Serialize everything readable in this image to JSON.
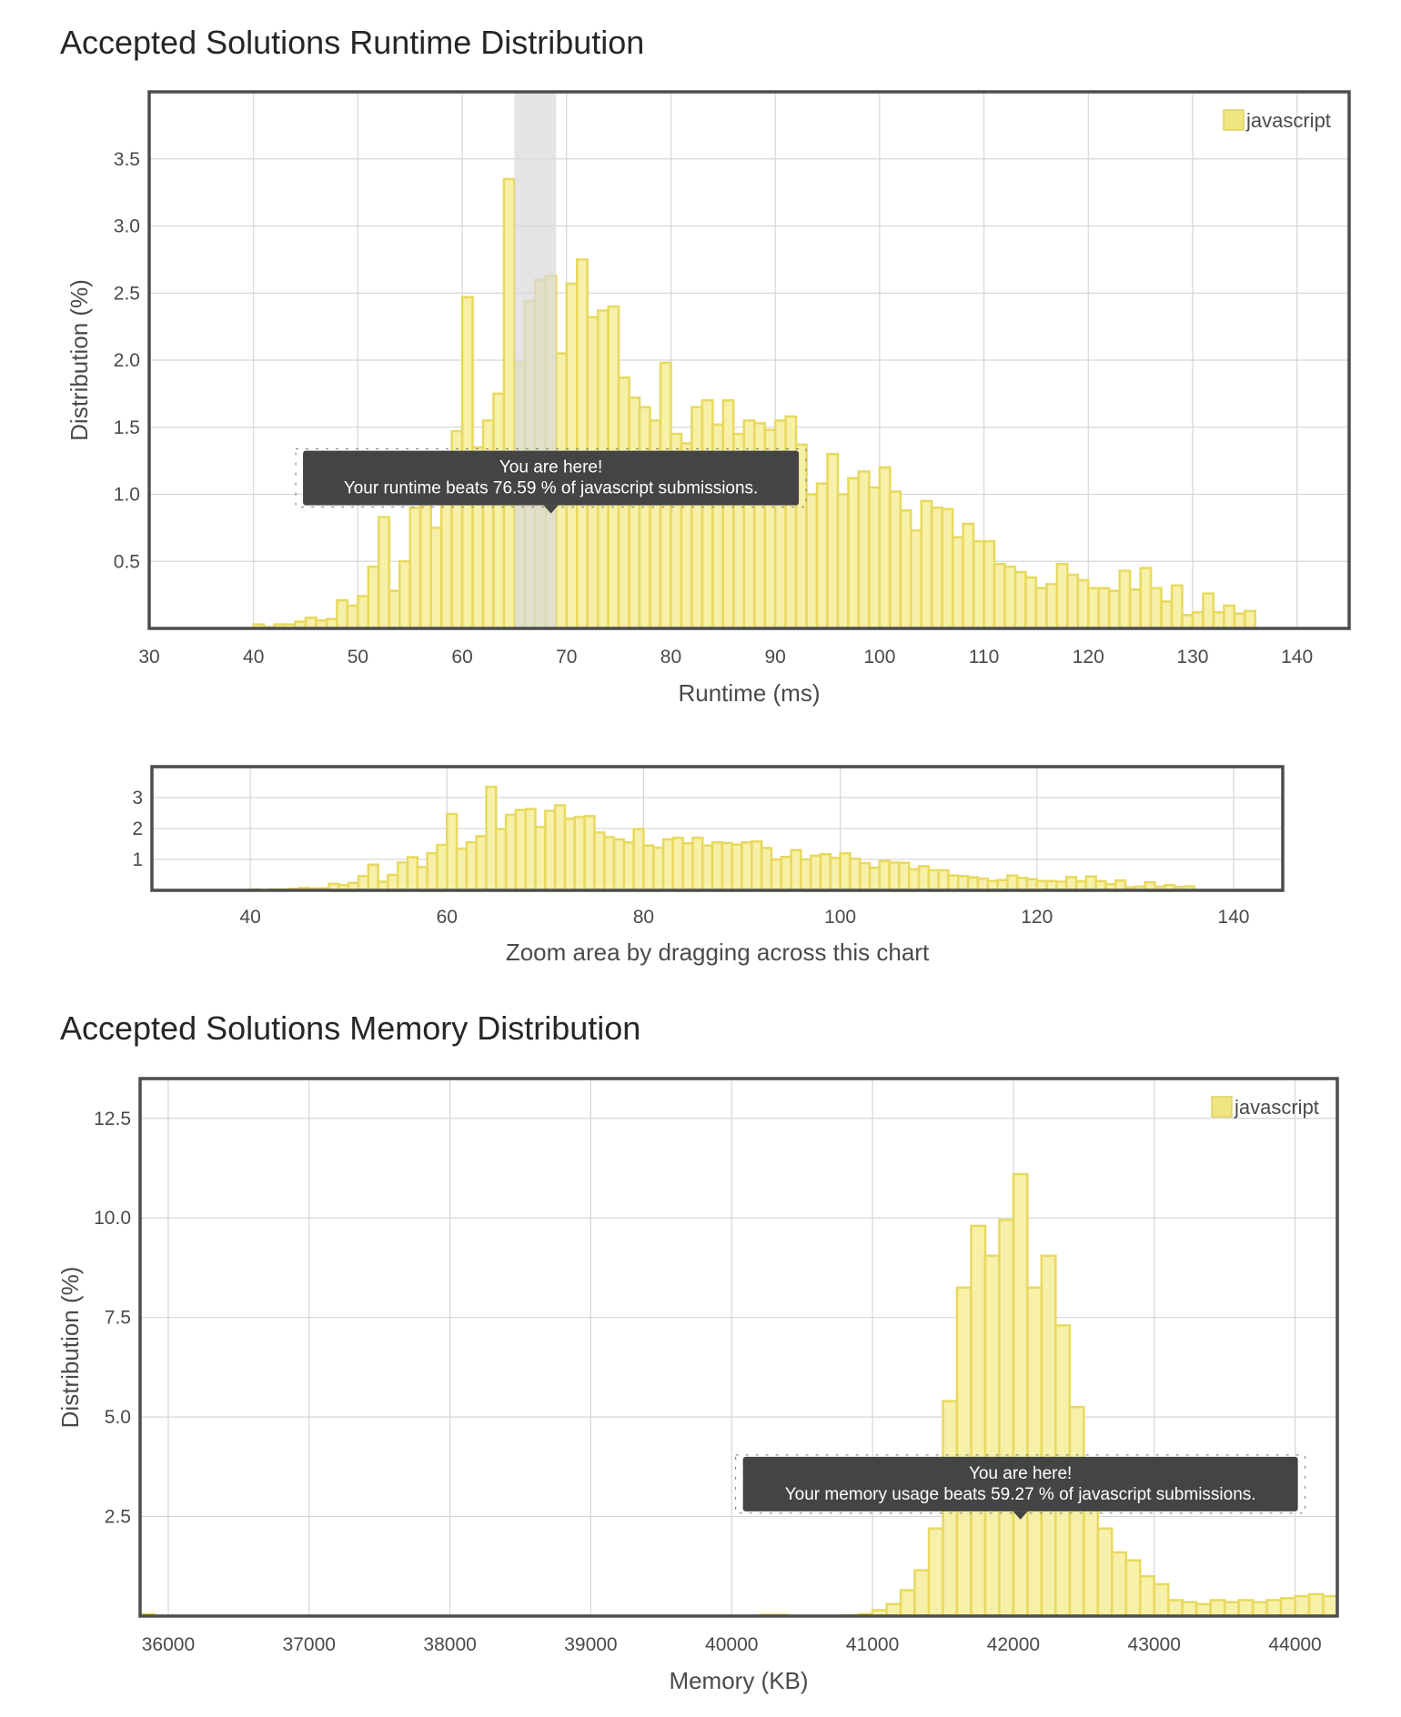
{
  "runtime_title": "Accepted Solutions Runtime Distribution",
  "memory_title": "Accepted Solutions Memory Distribution",
  "colors": {
    "bar_fill": "#f6f0a8",
    "bar_stroke": "#e8d95e",
    "tooltip_bg": "#444444",
    "frame": "#4d4d4d"
  },
  "chart_data": [
    {
      "id": "runtime",
      "type": "bar",
      "ylabel": "Distribution (%)",
      "xlabel": "Runtime (ms)",
      "legend": "javascript",
      "legend_position": "top-right",
      "grid": true,
      "xlim": [
        30,
        145
      ],
      "ylim": [
        0,
        4
      ],
      "bin_width": 1,
      "xticks": [
        30,
        40,
        50,
        60,
        70,
        80,
        90,
        100,
        110,
        120,
        130,
        140
      ],
      "yticks": [
        0.5,
        1.0,
        1.5,
        2.0,
        2.5,
        3.0,
        3.5
      ],
      "ytick_labels": [
        "0.5",
        "1.0",
        "1.5",
        "2.0",
        "2.5",
        "3.0",
        "3.5"
      ],
      "highlight_range": [
        65,
        69
      ],
      "tooltip": {
        "line1": "You are here!",
        "line2": "Your runtime beats 76.59 % of javascript submissions.",
        "x": 68.5,
        "y": 0.85
      },
      "x": [
        40,
        41,
        42,
        43,
        44,
        45,
        46,
        47,
        48,
        49,
        50,
        51,
        52,
        53,
        54,
        55,
        56,
        57,
        58,
        59,
        60,
        61,
        62,
        63,
        64,
        65,
        66,
        67,
        68,
        69,
        70,
        71,
        72,
        73,
        74,
        75,
        76,
        77,
        78,
        79,
        80,
        81,
        82,
        83,
        84,
        85,
        86,
        87,
        88,
        89,
        90,
        91,
        92,
        93,
        94,
        95,
        96,
        97,
        98,
        99,
        100,
        101,
        102,
        103,
        104,
        105,
        106,
        107,
        108,
        109,
        110,
        111,
        112,
        113,
        114,
        115,
        116,
        117,
        118,
        119,
        120,
        121,
        122,
        123,
        124,
        125,
        126,
        127,
        128,
        129,
        130,
        131,
        132,
        133,
        134,
        135
      ],
      "values": [
        0.03,
        0.01,
        0.03,
        0.03,
        0.05,
        0.08,
        0.06,
        0.07,
        0.21,
        0.17,
        0.24,
        0.46,
        0.83,
        0.28,
        0.5,
        0.9,
        1.07,
        0.75,
        1.2,
        1.47,
        2.47,
        1.35,
        1.55,
        1.75,
        3.35,
        1.98,
        2.44,
        2.6,
        2.63,
        2.05,
        2.57,
        2.75,
        2.32,
        2.37,
        2.4,
        1.87,
        1.72,
        1.65,
        1.55,
        1.98,
        1.45,
        1.38,
        1.65,
        1.7,
        1.52,
        1.7,
        1.45,
        1.55,
        1.53,
        1.48,
        1.55,
        1.58,
        1.37,
        1.0,
        1.08,
        1.3,
        1.0,
        1.12,
        1.17,
        1.05,
        1.2,
        1.02,
        0.88,
        0.73,
        0.95,
        0.9,
        0.89,
        0.68,
        0.78,
        0.65,
        0.65,
        0.48,
        0.46,
        0.42,
        0.38,
        0.3,
        0.33,
        0.48,
        0.4,
        0.36,
        0.3,
        0.3,
        0.28,
        0.43,
        0.29,
        0.45,
        0.3,
        0.2,
        0.32,
        0.1,
        0.12,
        0.26,
        0.12,
        0.17,
        0.11,
        0.13
      ]
    },
    {
      "id": "zoom",
      "type": "bar",
      "xlabel": "Zoom area by dragging across this chart",
      "grid": true,
      "xlim": [
        30,
        145
      ],
      "ylim": [
        0,
        4
      ],
      "xticks": [
        40,
        60,
        80,
        100,
        120,
        140
      ],
      "yticks": [
        1,
        2,
        3
      ],
      "ytick_labels": [
        "1",
        "2",
        "3"
      ]
    },
    {
      "id": "memory",
      "type": "bar",
      "ylabel": "Distribution (%)",
      "xlabel": "Memory (KB)",
      "legend": "javascript",
      "legend_position": "top-right",
      "grid": true,
      "xlim": [
        35800,
        44300
      ],
      "ylim": [
        0,
        13.5
      ],
      "bin_width": 100,
      "xticks": [
        36000,
        37000,
        38000,
        39000,
        40000,
        41000,
        42000,
        43000,
        44000
      ],
      "yticks": [
        2.5,
        5.0,
        7.5,
        10.0,
        12.5
      ],
      "ytick_labels": [
        "2.5",
        "5.0",
        "7.5",
        "10.0",
        "12.5"
      ],
      "tooltip": {
        "line1": "You are here!",
        "line2": "Your memory usage beats 59.27 % of javascript submissions.",
        "x": 42050,
        "y": 2.4
      },
      "x": [
        35800,
        40200,
        40300,
        40800,
        40900,
        41000,
        41100,
        41200,
        41300,
        41400,
        41500,
        41600,
        41700,
        41800,
        41900,
        42000,
        42100,
        42200,
        42300,
        42400,
        42500,
        42600,
        42700,
        42800,
        42900,
        43000,
        43100,
        43200,
        43300,
        43400,
        43500,
        43600,
        43700,
        43800,
        43900,
        44000,
        44100,
        44200
      ],
      "values": [
        0.05,
        0.03,
        0.03,
        0.02,
        0.05,
        0.15,
        0.3,
        0.65,
        1.15,
        2.2,
        5.4,
        8.25,
        9.8,
        9.05,
        9.95,
        11.1,
        8.25,
        9.05,
        7.3,
        5.25,
        2.9,
        2.2,
        1.6,
        1.4,
        1.0,
        0.8,
        0.4,
        0.35,
        0.3,
        0.4,
        0.35,
        0.4,
        0.35,
        0.4,
        0.45,
        0.5,
        0.55,
        0.5
      ]
    }
  ]
}
